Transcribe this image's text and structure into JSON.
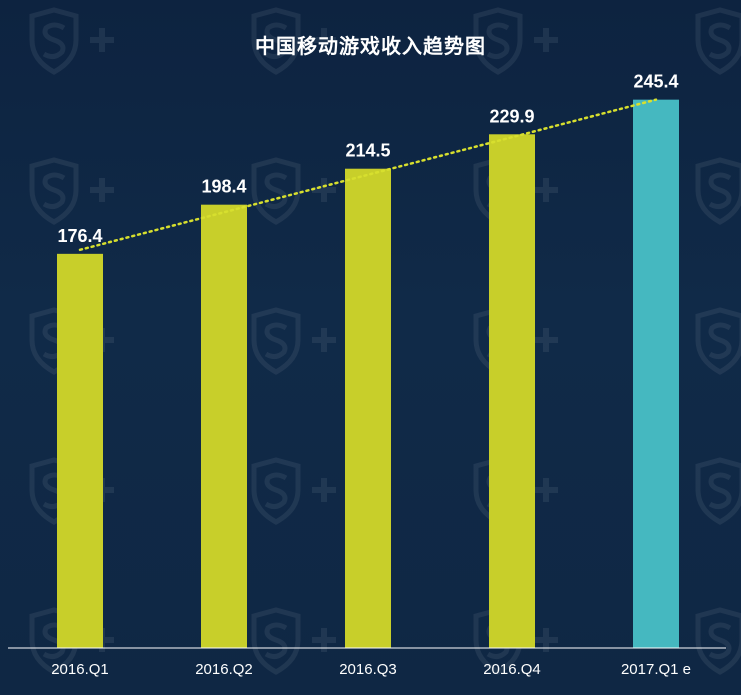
{
  "chart_data": {
    "type": "bar",
    "title": "中国移动游戏收入趋势图",
    "categories": [
      "2016.Q1",
      "2016.Q2",
      "2016.Q3",
      "2016.Q4",
      "2017.Q1 e"
    ],
    "values": [
      176.4,
      198.4,
      214.5,
      229.9,
      245.4
    ],
    "data_labels": [
      "176.4",
      "198.4",
      "214.5",
      "229.9",
      "245.4"
    ],
    "ylim": [
      0,
      290
    ],
    "grid": false,
    "legend": "none",
    "trend_line": "dotted",
    "colors": {
      "bar": "#c8cf2a",
      "bar_estimate": "#45b8c0",
      "trend": "#d7df2e",
      "axis": "#ffffff",
      "label": "#ffffff",
      "background": "#0f2744"
    }
  }
}
